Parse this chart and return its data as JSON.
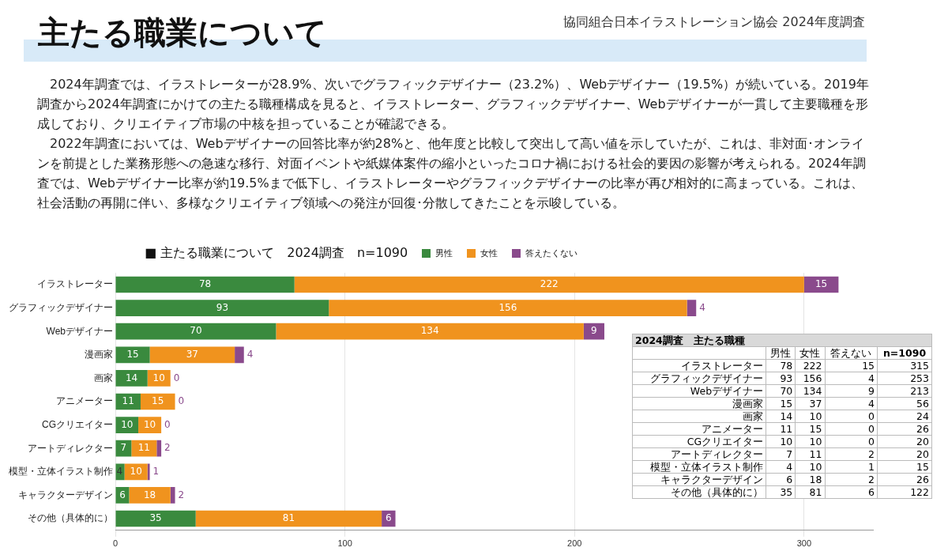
{
  "chart_data": [
    {
      "type": "bar",
      "orientation": "horizontal",
      "stacked": true,
      "title": "主たる職業について",
      "subtitle": "協同組合日本イラストレーション協会 2024年度調査",
      "annotations": [
        "2024年調査では、イラストレーターが28.9%、次いでグラフィックデザイナー（23.2%）、Webデザイナー（19.5%）が続いている。2019年調査から2024年調査にかけての主たる職種構成を見ると、イラストレーター、グラフィックデザイナー、Webデザイナーが一貫して主要職種を形成しており、クリエイティブ市場の中核を担っていることが確認できる。",
        "2022年調査においては、Webデザイナーの回答比率が約28%と、他年度と比較して突出して高い値を示していたが、これは、非対面･オンラインを前提とした業務形態への急速な移行、対面イベントや紙媒体案件の縮小といったコロナ禍における社会的要因の影響が考えられる。2024年調査では、Webデザイナー比率が約19.5%まで低下し、イラストレーターやグラフィックデザイナーの比率が再び相対的に高まっている。これは、社会活動の再開に伴い、多様なクリエイティブ領域への発注が回復･分散してきたことを示唆している。",
        "■ 主たる職業について　2024調査　n=1090"
      ],
      "categories": [
        "イラストレーター",
        "グラフィックデザイナー",
        "Webデザイナー",
        "漫画家",
        "画家",
        "アニメーター",
        "CGクリエイター",
        "アートディレクター",
        "模型・立体イラスト制作",
        "キャラクターデザイン",
        "その他（具体的に）"
      ],
      "series": [
        {
          "name": "男性",
          "color": "#3a8a3e",
          "values": [
            78,
            93,
            70,
            15,
            14,
            11,
            10,
            7,
            4,
            6,
            35
          ]
        },
        {
          "name": "女性",
          "color": "#f0931e",
          "values": [
            222,
            156,
            134,
            37,
            10,
            15,
            10,
            11,
            10,
            18,
            81
          ]
        },
        {
          "name": "答えたくない",
          "color": "#8a4a8c",
          "values": [
            15,
            4,
            9,
            4,
            0,
            0,
            0,
            2,
            1,
            2,
            6
          ]
        }
      ],
      "xlim": [
        0,
        330
      ],
      "xticks": [
        0,
        100,
        200,
        300
      ],
      "grid": "x",
      "legend": "top",
      "data_labels": true
    },
    {
      "type": "other",
      "title": "2024調査　主たる職種",
      "categories": [
        "イラストレーター",
        "グラフィックデザイナー",
        "Webデザイナー",
        "漫画家",
        "画家",
        "アニメーター",
        "CGクリエイター",
        "アートディレクター",
        "模型・立体イラスト制作",
        "キャラクターデザイン",
        "その他（具体的に）"
      ],
      "series": [
        {
          "name": "男性",
          "values": [
            78,
            93,
            70,
            15,
            14,
            11,
            10,
            7,
            4,
            6,
            35
          ]
        },
        {
          "name": "女性",
          "values": [
            222,
            156,
            134,
            37,
            10,
            15,
            10,
            11,
            10,
            18,
            81
          ]
        },
        {
          "name": "答えない",
          "values": [
            15,
            4,
            9,
            4,
            0,
            0,
            0,
            2,
            1,
            2,
            6
          ]
        },
        {
          "name": "n=1090",
          "values": [
            315,
            253,
            213,
            56,
            24,
            26,
            20,
            20,
            15,
            26,
            122
          ]
        }
      ],
      "data_labels": true
    }
  ]
}
